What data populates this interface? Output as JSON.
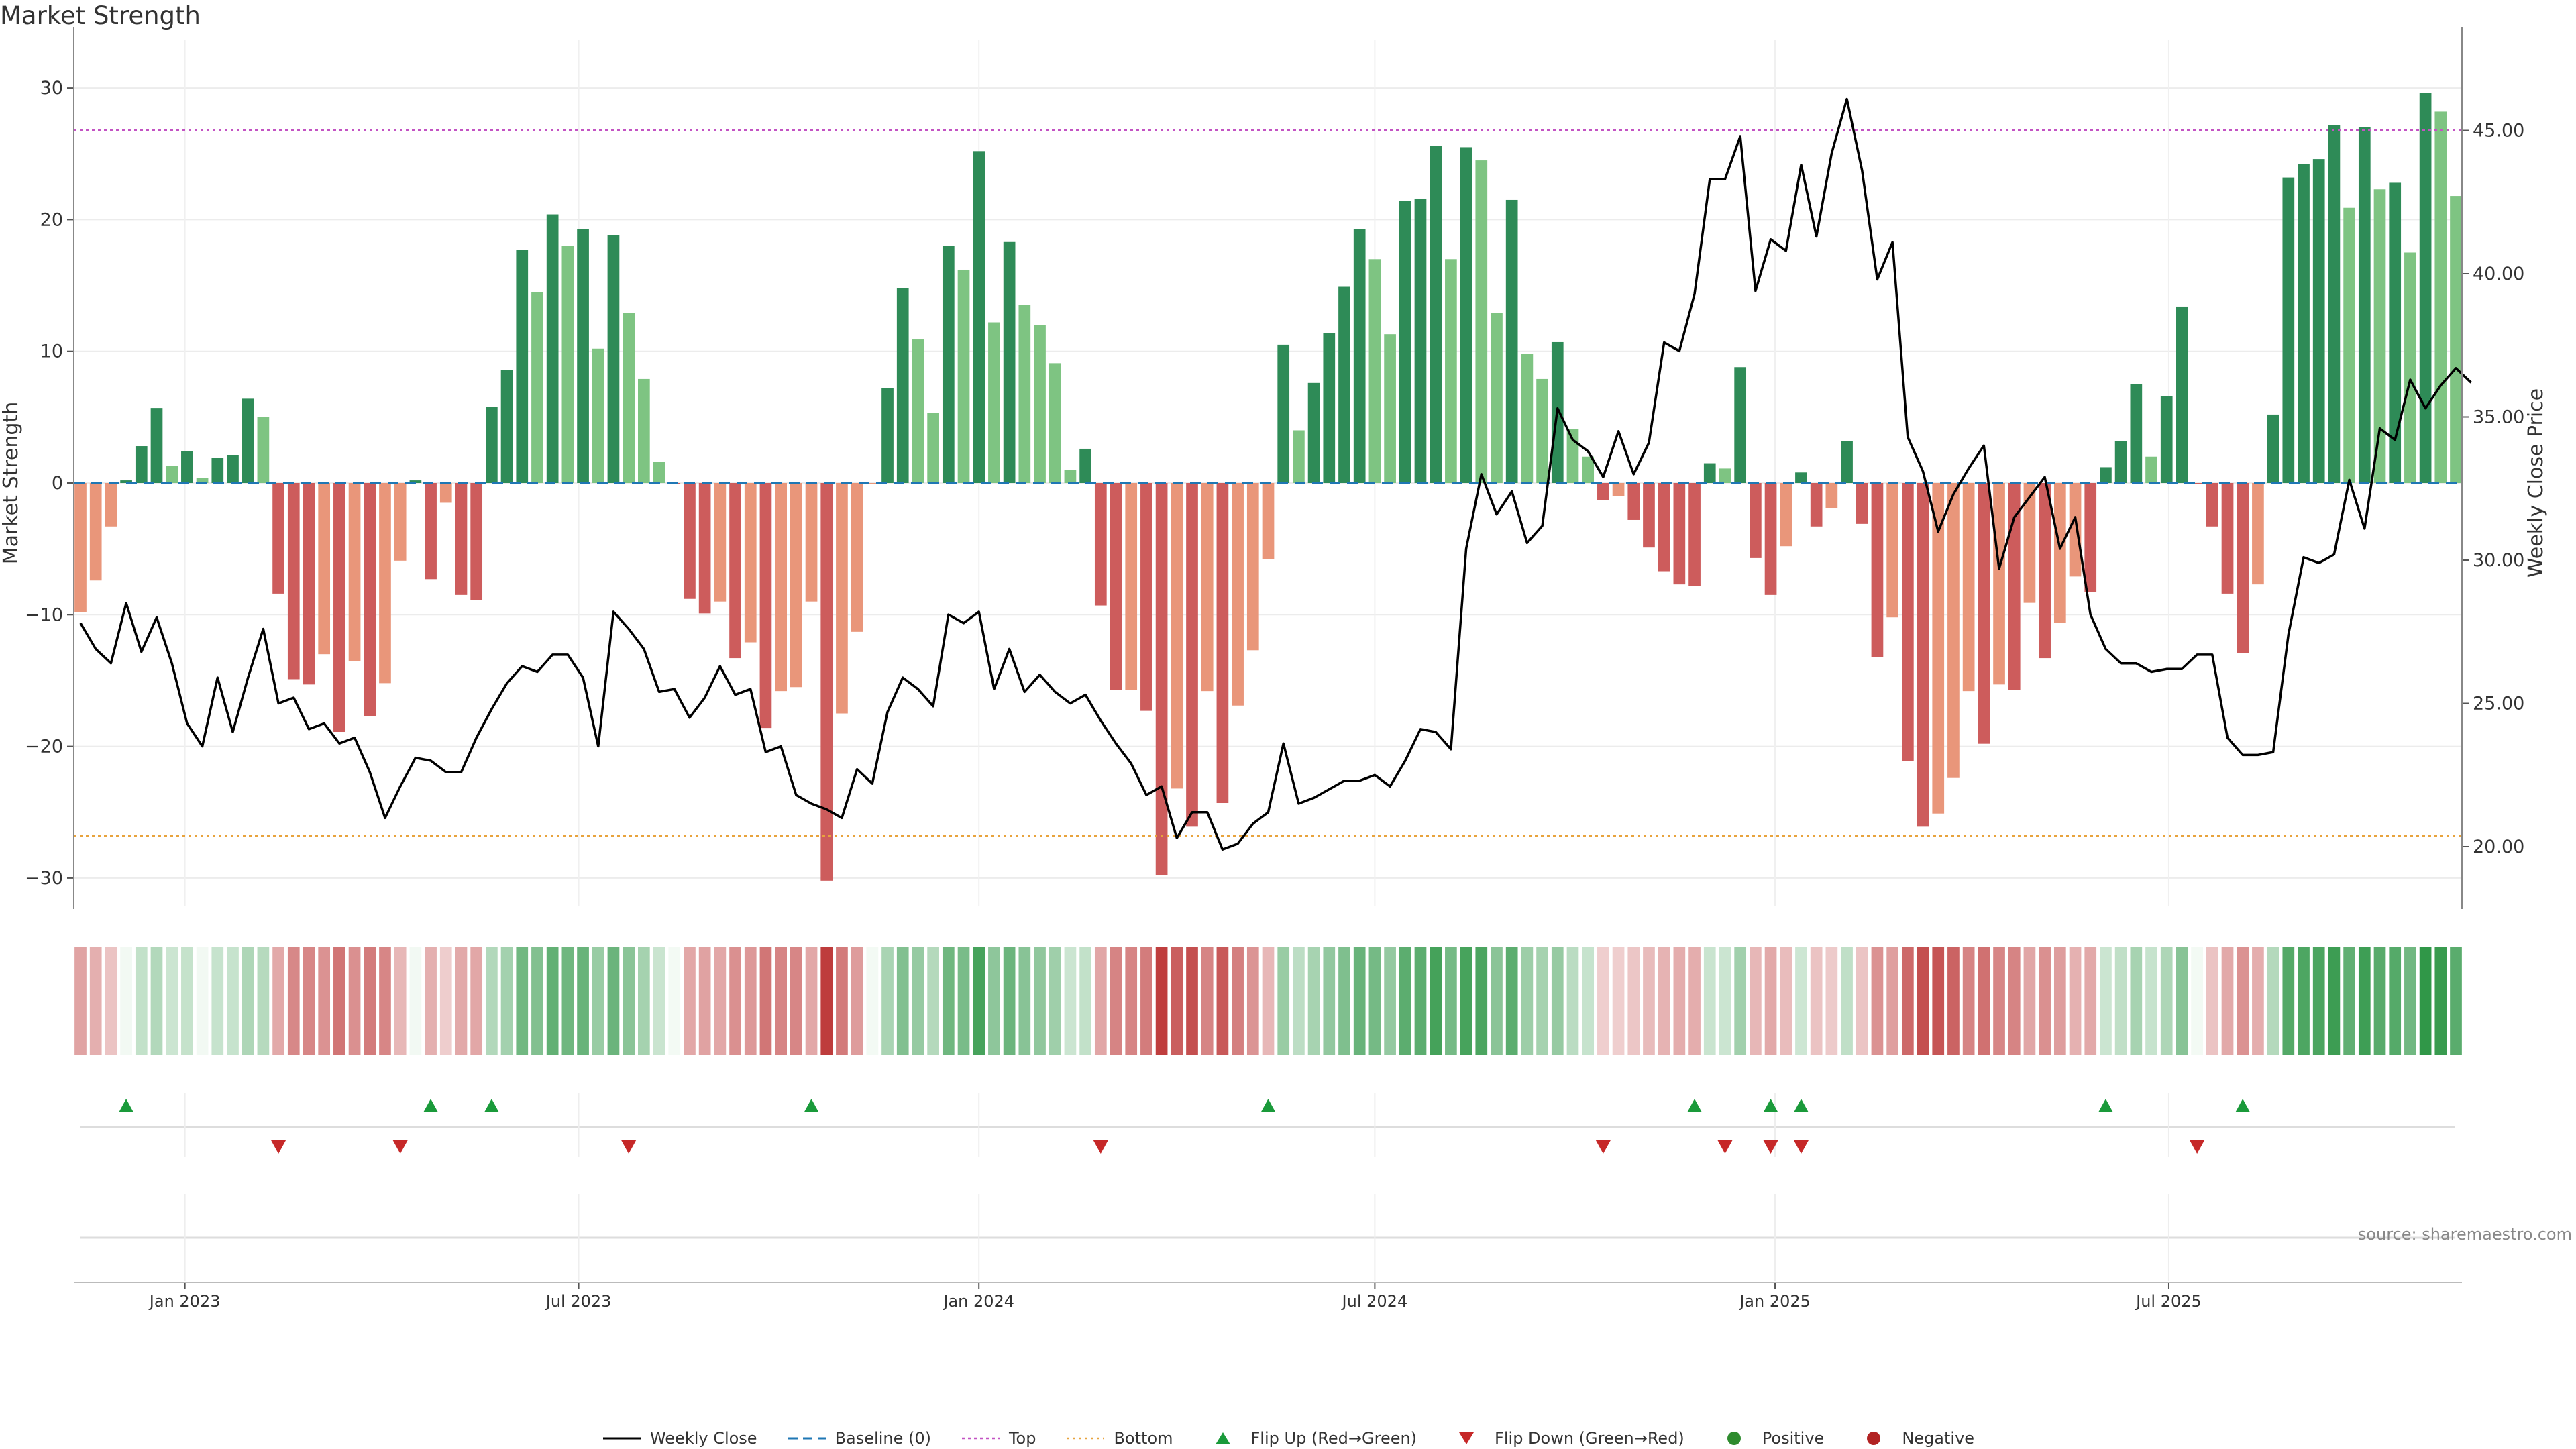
{
  "title": "Market Strength",
  "source": "source: sharemaestro.com",
  "colors": {
    "pos_strong": "#2e8b57",
    "pos_weak": "#7ec482",
    "neg_strong": "#cd5c5c",
    "neg_weak": "#e9967a",
    "line": "#000000",
    "baseline": "#1f77b4",
    "top": "#c353c3",
    "bottom": "#e8a33d",
    "flip_up": "#1a9a3a",
    "flip_down": "#c62828",
    "positive": "#2e8b2e",
    "negative": "#b22222"
  },
  "legend": [
    {
      "key": "weekly_close",
      "label": "Weekly Close",
      "icon": "solid-line-icon"
    },
    {
      "key": "baseline",
      "label": "Baseline (0)",
      "icon": "dashed-line-icon"
    },
    {
      "key": "top",
      "label": "Top",
      "icon": "dotted-line-icon"
    },
    {
      "key": "bottom",
      "label": "Bottom",
      "icon": "dotted-line-icon"
    },
    {
      "key": "flip_up",
      "label": "Flip Up (Red→Green)",
      "icon": "triangle-up-icon"
    },
    {
      "key": "flip_down",
      "label": "Flip Down (Green→Red)",
      "icon": "triangle-down-icon"
    },
    {
      "key": "positive",
      "label": "Positive",
      "icon": "circle-icon"
    },
    {
      "key": "negative",
      "label": "Negative",
      "icon": "circle-icon"
    }
  ],
  "chart_data": {
    "type": "bar",
    "title": "Market Strength",
    "ylabel": "Market Strength",
    "y2label": "Weekly Close Price",
    "ylim": [
      -32.5,
      32.5
    ],
    "y2lim": [
      17.8,
      48.6
    ],
    "yticks": [
      30,
      20,
      10,
      0,
      -10,
      -20,
      -30
    ],
    "ytick_labels": [
      "30",
      "20",
      "10",
      "0",
      "−10",
      "−20",
      "−30"
    ],
    "y2ticks": [
      45,
      40,
      35,
      30,
      25,
      20
    ],
    "y2tick_labels": [
      "45.00",
      "40.00",
      "35.00",
      "30.00",
      "25.00",
      "20.00"
    ],
    "top_threshold": 26.8,
    "bottom_threshold": -26.8,
    "baseline": 0,
    "grid": true,
    "start_date": "2022-11-14",
    "frequency": "weekly",
    "xticks": [
      "2023-01-01",
      "2023-07-01",
      "2024-01-01",
      "2024-07-01",
      "2025-01-01",
      "2025-07-01"
    ],
    "xtick_labels": [
      "Jan 2023",
      "Jul 2023",
      "Jan 2024",
      "Jul 2024",
      "Jan 2025",
      "Jul 2025"
    ],
    "strength": [
      -9.8,
      -7.4,
      -3.3,
      0.2,
      2.8,
      5.7,
      1.3,
      2.4,
      0.4,
      1.9,
      2.1,
      6.4,
      5.0,
      -8.4,
      -14.9,
      -15.3,
      -13.0,
      -18.9,
      -13.5,
      -17.7,
      -15.2,
      -5.9,
      0.2,
      -7.3,
      -1.5,
      -8.5,
      -8.9,
      5.8,
      8.6,
      17.7,
      14.5,
      20.4,
      18.0,
      19.3,
      10.2,
      18.8,
      12.9,
      7.9,
      1.6,
      -0.1,
      -8.8,
      -9.9,
      -9.0,
      -13.3,
      -12.1,
      -18.6,
      -15.8,
      -15.5,
      -9.0,
      -30.2,
      -17.5,
      -11.3,
      -0.1,
      7.2,
      14.8,
      10.9,
      5.3,
      18.0,
      16.2,
      25.2,
      12.2,
      18.3,
      13.5,
      12.0,
      9.1,
      1.0,
      2.6,
      -9.3,
      -15.7,
      -15.7,
      -17.3,
      -29.8,
      -23.2,
      -26.1,
      -15.8,
      -24.3,
      -16.9,
      -12.7,
      -5.8,
      10.5,
      4.0,
      7.6,
      11.4,
      14.9,
      19.3,
      17.0,
      11.3,
      21.4,
      21.6,
      25.6,
      17.0,
      25.5,
      24.5,
      12.9,
      21.5,
      9.8,
      7.9,
      10.7,
      4.1,
      2.0,
      -1.3,
      -1.0,
      -2.8,
      -4.9,
      -6.7,
      -7.7,
      -7.8,
      1.5,
      1.1,
      8.8,
      -5.7,
      -8.5,
      -4.8,
      0.8,
      -3.3,
      -1.9,
      3.2,
      -3.1,
      -13.2,
      -10.2,
      -21.1,
      -26.1,
      -25.1,
      -22.4,
      -15.8,
      -19.8,
      -15.3,
      -15.7,
      -9.1,
      -13.3,
      -10.6,
      -7.1,
      -8.3,
      1.2,
      3.2,
      7.5,
      2.0,
      6.6,
      13.4,
      -0.1,
      -3.3,
      -8.4,
      -12.9,
      -7.7,
      5.2,
      23.2,
      24.2,
      24.6,
      27.2,
      20.9,
      27.0,
      22.3,
      22.8,
      17.5,
      29.6,
      28.2,
      21.8
    ],
    "weekly_close": [
      27.8,
      26.9,
      26.4,
      28.5,
      26.8,
      28.0,
      26.4,
      24.3,
      23.5,
      25.9,
      24.0,
      25.9,
      27.6,
      25.0,
      25.2,
      24.1,
      24.3,
      23.6,
      23.8,
      22.6,
      21.0,
      22.1,
      23.1,
      23.0,
      22.6,
      22.6,
      23.8,
      24.8,
      25.7,
      26.3,
      26.1,
      26.7,
      26.7,
      25.9,
      23.5,
      28.2,
      27.6,
      26.9,
      25.4,
      25.5,
      24.5,
      25.2,
      26.3,
      25.3,
      25.5,
      23.3,
      23.5,
      21.8,
      21.5,
      21.3,
      21.0,
      22.7,
      22.2,
      24.7,
      25.9,
      25.5,
      24.9,
      28.1,
      27.8,
      28.2,
      25.5,
      26.9,
      25.4,
      26.0,
      25.4,
      25.0,
      25.3,
      24.4,
      23.6,
      22.9,
      21.8,
      22.1,
      20.3,
      21.2,
      21.2,
      19.9,
      20.1,
      20.8,
      21.2,
      23.6,
      21.5,
      21.7,
      22.0,
      22.3,
      22.3,
      22.5,
      22.1,
      23.0,
      24.1,
      24.0,
      23.4,
      30.4,
      33.0,
      31.6,
      32.4,
      30.6,
      31.2,
      35.3,
      34.2,
      33.8,
      32.9,
      34.5,
      33.0,
      34.1,
      37.6,
      37.3,
      39.3,
      43.3,
      43.3,
      44.8,
      39.4,
      41.2,
      40.8,
      43.8,
      41.3,
      44.2,
      46.1,
      43.6,
      39.8,
      41.1,
      34.3,
      33.1,
      31.0,
      32.3,
      33.2,
      34.0,
      29.7,
      31.5,
      32.2,
      32.9,
      30.4,
      31.5,
      28.1,
      26.9,
      26.4,
      26.4,
      26.1,
      26.2,
      26.2,
      26.7,
      26.7,
      23.8,
      23.2,
      23.2,
      23.3,
      27.4,
      30.1,
      29.9,
      30.2,
      32.8,
      31.1,
      34.6,
      34.2,
      36.3,
      35.3,
      36.1,
      36.7,
      36.2
    ],
    "flip_up": [
      "2022-12-05",
      "2023-04-24",
      "2023-05-22",
      "2023-10-16",
      "2024-05-13",
      "2024-11-25",
      "2024-12-30",
      "2025-01-13",
      "2025-06-02",
      "2025-08-04"
    ],
    "flip_down": [
      "2023-02-13",
      "2023-04-10",
      "2023-07-24",
      "2024-02-26",
      "2024-10-14",
      "2024-12-09",
      "2024-12-30",
      "2025-01-13",
      "2025-07-14"
    ]
  }
}
